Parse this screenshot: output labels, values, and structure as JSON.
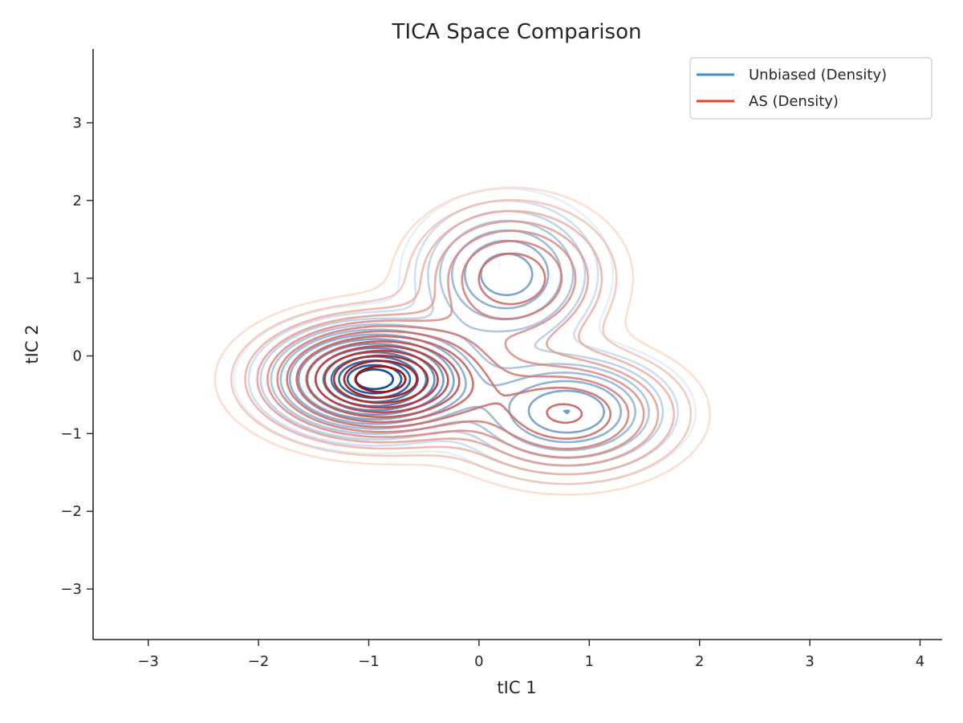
{
  "chart_data": {
    "type": "contour",
    "title": "TICA Space Comparison",
    "xlabel": "tIC 1",
    "ylabel": "tIC 2",
    "xlim": [
      -3.5,
      4.2
    ],
    "ylim": [
      -3.65,
      3.95
    ],
    "xticks": [
      {
        "value": -3,
        "label": "−3"
      },
      {
        "value": -2,
        "label": "−2"
      },
      {
        "value": -1,
        "label": "−1"
      },
      {
        "value": 0,
        "label": "0"
      },
      {
        "value": 1,
        "label": "1"
      },
      {
        "value": 2,
        "label": "2"
      },
      {
        "value": 3,
        "label": "3"
      },
      {
        "value": 4,
        "label": "4"
      }
    ],
    "yticks": [
      {
        "value": -3,
        "label": "−3"
      },
      {
        "value": -2,
        "label": "−2"
      },
      {
        "value": -1,
        "label": "−1"
      },
      {
        "value": 0,
        "label": "0"
      },
      {
        "value": 1,
        "label": "1"
      },
      {
        "value": 2,
        "label": "2"
      },
      {
        "value": 3,
        "label": "3"
      }
    ],
    "grid": false,
    "legend_position": "top-right",
    "series": [
      {
        "name": "Unbiased (Density)",
        "legend_color": "#4292c6",
        "color_light": "#deebf7",
        "color_dark": "#08519c",
        "components": [
          {
            "cx": -0.95,
            "cy": -0.3,
            "sx": 0.48,
            "sy": 0.36,
            "w": 1.0
          },
          {
            "cx": 0.25,
            "cy": 1.05,
            "sx": 0.42,
            "sy": 0.48,
            "w": 0.42
          },
          {
            "cx": 0.8,
            "cy": -0.72,
            "sx": 0.5,
            "sy": 0.4,
            "w": 0.45
          }
        ],
        "levels": [
          0.03,
          0.06,
          0.1,
          0.15,
          0.21,
          0.28,
          0.36,
          0.45,
          0.54,
          0.63,
          0.72,
          0.8,
          0.88,
          0.94
        ]
      },
      {
        "name": "AS (Density)",
        "legend_color": "#ef3b2c",
        "color_light": "#fcd4c3",
        "color_dark": "#a50f15",
        "components": [
          {
            "cx": -0.9,
            "cy": -0.3,
            "sx": 0.55,
            "sy": 0.4,
            "w": 1.0
          },
          {
            "cx": 0.3,
            "cy": 1.0,
            "sx": 0.47,
            "sy": 0.5,
            "w": 0.38
          },
          {
            "cx": 0.8,
            "cy": -0.75,
            "sx": 0.55,
            "sy": 0.44,
            "w": 0.4
          }
        ],
        "levels": [
          0.025,
          0.05,
          0.085,
          0.13,
          0.18,
          0.24,
          0.31,
          0.39,
          0.48,
          0.57,
          0.66,
          0.75,
          0.84,
          0.92
        ]
      }
    ]
  }
}
